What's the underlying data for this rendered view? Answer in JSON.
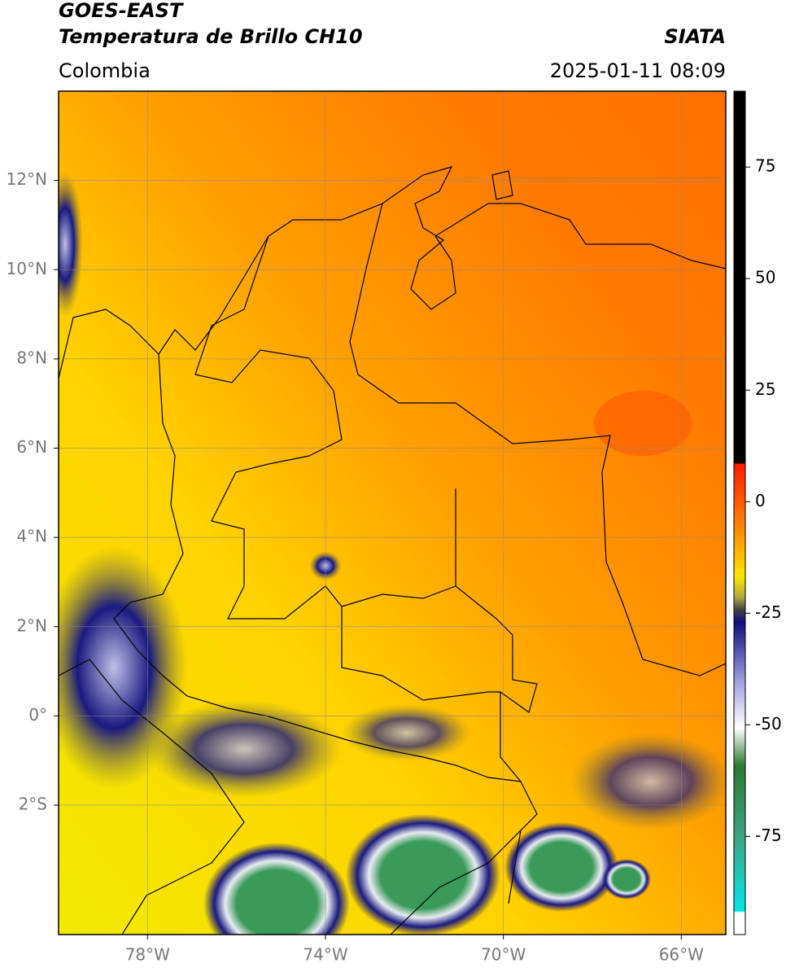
{
  "header": {
    "satellite": "GOES-EAST",
    "product": "Temperatura de Brillo CH10",
    "source": "SIATA",
    "region": "Colombia",
    "datetime": "2025-01-11 08:09"
  },
  "map": {
    "lonlim": [
      -80,
      -65
    ],
    "latlim": [
      -4.9,
      14
    ],
    "lon_ticks": [
      {
        "value": -78,
        "label": "78°W"
      },
      {
        "value": -74,
        "label": "74°W"
      },
      {
        "value": -70,
        "label": "70°W"
      },
      {
        "value": -66,
        "label": "66°W"
      }
    ],
    "lat_ticks": [
      {
        "value": 12,
        "label": "12°N"
      },
      {
        "value": 10,
        "label": "10°N"
      },
      {
        "value": 8,
        "label": "8°N"
      },
      {
        "value": 6,
        "label": "6°N"
      },
      {
        "value": 4,
        "label": "4°N"
      },
      {
        "value": 2,
        "label": "2°N"
      },
      {
        "value": 0,
        "label": "0°"
      },
      {
        "value": -2,
        "label": "2°S"
      }
    ]
  },
  "colorbar": {
    "lim": [
      -97,
      92
    ],
    "ticks": [
      75,
      50,
      25,
      0,
      -25,
      -50,
      -75
    ]
  }
}
